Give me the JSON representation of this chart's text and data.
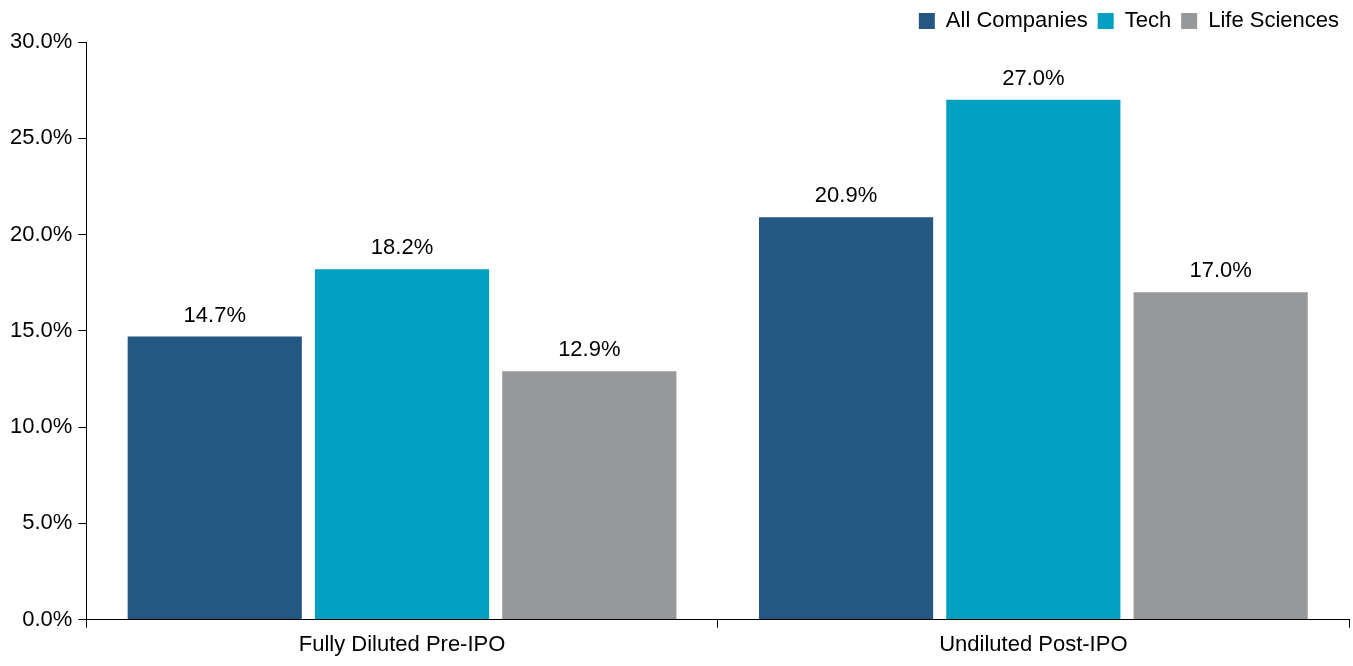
{
  "chart_data": {
    "type": "bar",
    "categories": [
      "Fully Diluted Pre-IPO",
      "Undiluted Post-IPO"
    ],
    "series": [
      {
        "name": "All Companies",
        "color": "#255783",
        "values": [
          14.7,
          20.9
        ],
        "value_labels": [
          "14.7%",
          "20.9%"
        ]
      },
      {
        "name": "Tech",
        "color": "#00a0c0",
        "values": [
          18.2,
          27.0
        ],
        "value_labels": [
          "18.2%",
          "27.0%"
        ]
      },
      {
        "name": "Life Sciences",
        "color": "#97989a",
        "values": [
          12.9,
          17.0
        ],
        "value_labels": [
          "12.9%",
          "17.0%"
        ]
      }
    ],
    "ylim": [
      0,
      30
    ],
    "yticks": [
      {
        "value": 0,
        "label": "0.0%"
      },
      {
        "value": 5,
        "label": "5.0%"
      },
      {
        "value": 10,
        "label": "10.0%"
      },
      {
        "value": 15,
        "label": "15.0%"
      },
      {
        "value": 20,
        "label": "20.0%"
      },
      {
        "value": 25,
        "label": "25.0%"
      },
      {
        "value": 30,
        "label": "30.0%"
      }
    ],
    "grid": false,
    "legend": "top right"
  }
}
